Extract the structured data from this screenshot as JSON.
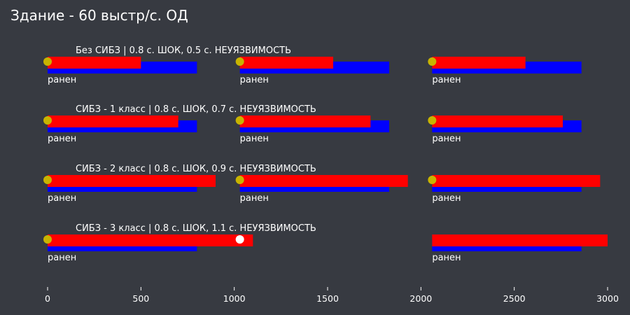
{
  "title": "Здание - 60 выстр/с. ОД",
  "chart_data": {
    "type": "bar",
    "x_ticks": [
      0,
      500,
      1000,
      1500,
      2000,
      2500,
      3000
    ],
    "xlim": [
      0,
      3000
    ],
    "grid": false,
    "colors": {
      "blue_bar": "#0000ff",
      "red_bar": "#ff0000",
      "start_marker": "#c8b400",
      "hit_marker": "#ffffff",
      "tick": "#ffffff"
    },
    "rows": [
      {
        "label": "Без СИБЗ | 0.8 с. ШОК, 0.5 с. НЕУЯЗВИМОСТЬ",
        "segments": [
          {
            "start": 0,
            "blue_end": 800,
            "red_end": 500,
            "marker": 0,
            "marker_type": "start",
            "wound_label": "ранен"
          },
          {
            "start": 1030,
            "blue_end": 1830,
            "red_end": 1530,
            "marker": 1030,
            "marker_type": "start",
            "wound_label": "ранен"
          },
          {
            "start": 2060,
            "blue_end": 2860,
            "red_end": 2560,
            "marker": 2060,
            "marker_type": "start",
            "wound_label": "ранен"
          }
        ]
      },
      {
        "label": "СИБЗ - 1 класс | 0.8 с. ШОК, 0.7 с. НЕУЯЗВИМОСТЬ",
        "segments": [
          {
            "start": 0,
            "blue_end": 800,
            "red_end": 700,
            "marker": 0,
            "marker_type": "start",
            "wound_label": "ранен"
          },
          {
            "start": 1030,
            "blue_end": 1830,
            "red_end": 1730,
            "marker": 1030,
            "marker_type": "start",
            "wound_label": "ранен"
          },
          {
            "start": 2060,
            "blue_end": 2860,
            "red_end": 2760,
            "marker": 2060,
            "marker_type": "start",
            "wound_label": "ранен"
          }
        ]
      },
      {
        "label": "СИБЗ - 2 класс | 0.8 с. ШОК, 0.9 с. НЕУЯЗВИМОСТЬ",
        "segments": [
          {
            "start": 0,
            "blue_end": 800,
            "red_end": 900,
            "marker": 0,
            "marker_type": "start",
            "wound_label": "ранен"
          },
          {
            "start": 1030,
            "blue_end": 1830,
            "red_end": 1930,
            "marker": 1030,
            "marker_type": "start",
            "wound_label": "ранен"
          },
          {
            "start": 2060,
            "blue_end": 2860,
            "red_end": 2960,
            "marker": 2060,
            "marker_type": "start",
            "wound_label": "ранен"
          }
        ]
      },
      {
        "label": "СИБЗ - 3 класс | 0.8 с. ШОК, 1.1 с. НЕУЯЗВИМОСТЬ",
        "segments": [
          {
            "start": 0,
            "blue_end": 800,
            "red_end": 1100,
            "marker": 0,
            "marker_type": "start",
            "wound_label": "ранен",
            "extra_marker": 1030
          },
          {
            "start": 2060,
            "blue_end": 2860,
            "red_end": 3000,
            "marker": null,
            "marker_type": "none",
            "wound_label": "ранен"
          }
        ]
      }
    ]
  }
}
